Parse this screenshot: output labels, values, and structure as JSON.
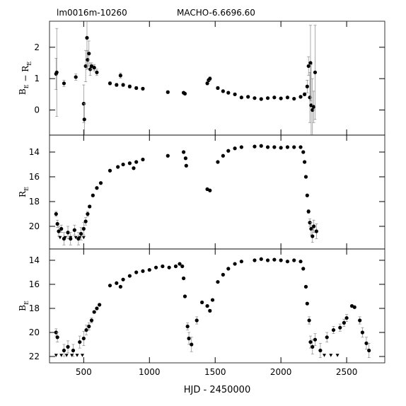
{
  "chart_data": [
    {
      "type": "scatter",
      "subtitle": "lm0016m-10260",
      "title": "MACHO-6.6696.60",
      "ylabel": [
        {
          "text": "B",
          "sub": "E"
        },
        {
          "text": " − R",
          "sub": "E"
        }
      ],
      "xlim": [
        240,
        2790
      ],
      "ylim": [
        -0.8,
        2.83
      ],
      "yticks": [
        0,
        1,
        2
      ],
      "series": [
        {
          "name": "B-R",
          "color": "#000000",
          "x": [
            290,
            295,
            350,
            440,
            500,
            505,
            515,
            525,
            530,
            540,
            550,
            560,
            580,
            600,
            700,
            750,
            780,
            800,
            850,
            900,
            950,
            1140,
            1260,
            1270,
            1440,
            1450,
            1460,
            1520,
            1560,
            1600,
            1650,
            1700,
            1750,
            1800,
            1850,
            1900,
            1950,
            2000,
            2050,
            2100,
            2150,
            2180,
            2200,
            2210,
            2220,
            2225,
            2230,
            2240,
            2250,
            2260
          ],
          "values": [
            1.15,
            1.2,
            0.85,
            1.05,
            0.2,
            -0.3,
            1.4,
            2.3,
            1.6,
            1.8,
            1.3,
            1.4,
            1.35,
            1.2,
            0.85,
            0.8,
            1.1,
            0.8,
            0.75,
            0.7,
            0.68,
            0.57,
            0.55,
            0.52,
            0.85,
            0.95,
            1.0,
            0.7,
            0.6,
            0.55,
            0.5,
            0.4,
            0.42,
            0.38,
            0.35,
            0.38,
            0.4,
            0.37,
            0.4,
            0.36,
            0.42,
            0.5,
            0.75,
            1.4,
            0.4,
            1.5,
            0.15,
            0.0,
            0.1,
            1.2
          ],
          "errors": [
            0.5,
            1.4,
            0.1,
            0.1,
            0.6,
            0.5,
            0.5,
            1.0,
            0.3,
            0.4,
            0.2,
            0.1,
            0.1,
            0.1,
            0.05,
            0.05,
            0.08,
            0.05,
            0.05,
            0.05,
            0.04,
            0.04,
            0.04,
            0.04,
            0.05,
            0.05,
            0.06,
            0.05,
            0.04,
            0.04,
            0.04,
            0.03,
            0.03,
            0.03,
            0.03,
            0.03,
            0.03,
            0.03,
            0.03,
            0.03,
            0.04,
            0.05,
            0.2,
            0.3,
            0.8,
            1.2,
            1.3,
            1.0,
            0.5,
            1.5
          ]
        }
      ]
    },
    {
      "type": "scatter",
      "ylabel": [
        {
          "text": "R",
          "sub": "E"
        }
      ],
      "xlim": [
        240,
        2790
      ],
      "ylim": [
        21.83,
        12.63
      ],
      "yticks": [
        14,
        16,
        18,
        20
      ],
      "series": [
        {
          "name": "R",
          "color": "#000000",
          "x": [
            290,
            300,
            310,
            330,
            350,
            380,
            400,
            430,
            460,
            480,
            500,
            515,
            530,
            545,
            570,
            600,
            630,
            700,
            760,
            800,
            850,
            880,
            900,
            950,
            1140,
            1260,
            1275,
            1280,
            1440,
            1460,
            1520,
            1560,
            1600,
            1650,
            1700,
            1800,
            1850,
            1900,
            1950,
            2000,
            2050,
            2100,
            2150,
            2170,
            2180,
            2190,
            2200,
            2210,
            2220,
            2230,
            2240,
            2250,
            2270
          ],
          "values": [
            19.0,
            19.8,
            20.4,
            20.2,
            21.0,
            20.5,
            21.0,
            20.3,
            21.0,
            20.6,
            20.2,
            19.6,
            19.0,
            18.4,
            17.5,
            16.9,
            16.5,
            15.5,
            15.2,
            15.0,
            14.9,
            15.3,
            14.8,
            14.6,
            14.3,
            14.0,
            14.5,
            15.1,
            17.0,
            17.1,
            14.8,
            14.3,
            13.9,
            13.7,
            13.6,
            13.55,
            13.5,
            13.6,
            13.6,
            13.65,
            13.6,
            13.6,
            13.6,
            14.0,
            14.8,
            16.0,
            17.5,
            18.8,
            19.7,
            20.2,
            20.8,
            20.0,
            20.4
          ],
          "errors": [
            0.2,
            0.3,
            0.4,
            0.3,
            0.5,
            0.5,
            0.5,
            0.4,
            0.5,
            0.5,
            0.5,
            0.3,
            0.2,
            0.1,
            0.1,
            0.08,
            0.05,
            0.04,
            0.04,
            0.04,
            0.04,
            0.04,
            0.03,
            0.03,
            0.03,
            0.03,
            0.03,
            0.03,
            0.04,
            0.04,
            0.03,
            0.03,
            0.03,
            0.02,
            0.02,
            0.02,
            0.02,
            0.02,
            0.02,
            0.02,
            0.02,
            0.02,
            0.02,
            0.02,
            0.03,
            0.04,
            0.08,
            0.15,
            0.3,
            0.5,
            0.5,
            0.5,
            0.6
          ]
        }
      ],
      "limits": {
        "x": [
          320,
          360,
          400,
          440,
          470,
          500
        ],
        "values": [
          20.9,
          20.9,
          20.9,
          20.9,
          20.9,
          20.9
        ]
      }
    },
    {
      "type": "scatter",
      "ylabel": [
        {
          "text": "B",
          "sub": "E"
        }
      ],
      "xlabel": "HJD - 2450000",
      "xlim": [
        240,
        2790
      ],
      "ylim": [
        22.53,
        13.06
      ],
      "yticks": [
        14,
        16,
        18,
        20,
        22
      ],
      "xticks": [
        500,
        1000,
        1500,
        2000,
        2500
      ],
      "series": [
        {
          "name": "B",
          "color": "#000000",
          "x": [
            290,
            300,
            350,
            380,
            420,
            470,
            500,
            520,
            540,
            560,
            580,
            600,
            620,
            700,
            750,
            780,
            800,
            850,
            900,
            950,
            1000,
            1050,
            1100,
            1150,
            1200,
            1230,
            1250,
            1260,
            1270,
            1290,
            1300,
            1320,
            1360,
            1400,
            1440,
            1460,
            1480,
            1520,
            1560,
            1600,
            1650,
            1700,
            1800,
            1850,
            1900,
            1950,
            2000,
            2050,
            2100,
            2150,
            2170,
            2190,
            2200,
            2215,
            2225,
            2240,
            2260,
            2300,
            2350,
            2400,
            2450,
            2480,
            2500,
            2540,
            2560,
            2600,
            2620,
            2650,
            2670
          ],
          "values": [
            20.0,
            20.4,
            21.5,
            21.2,
            21.5,
            20.8,
            20.5,
            19.8,
            19.5,
            19.0,
            18.3,
            18.0,
            17.7,
            16.1,
            15.9,
            16.2,
            15.6,
            15.3,
            15.0,
            14.9,
            14.8,
            14.6,
            14.5,
            14.6,
            14.5,
            14.3,
            14.5,
            15.5,
            17.0,
            19.5,
            20.5,
            21.0,
            19.0,
            17.5,
            17.8,
            18.2,
            17.3,
            15.8,
            15.2,
            14.7,
            14.3,
            14.1,
            14.0,
            13.9,
            14.0,
            13.95,
            14.0,
            14.1,
            14.0,
            14.1,
            14.7,
            16.2,
            17.6,
            19.0,
            20.8,
            21.2,
            20.6,
            21.5,
            20.4,
            19.8,
            19.6,
            19.2,
            18.8,
            17.8,
            17.9,
            19.0,
            20.0,
            20.9,
            21.5
          ],
          "errors": [
            0.3,
            0.4,
            0.5,
            0.5,
            0.5,
            0.5,
            0.6,
            0.4,
            0.3,
            0.2,
            0.1,
            0.1,
            0.08,
            0.05,
            0.05,
            0.05,
            0.04,
            0.04,
            0.04,
            0.04,
            0.04,
            0.03,
            0.03,
            0.03,
            0.03,
            0.03,
            0.03,
            0.05,
            0.1,
            0.3,
            0.5,
            0.6,
            0.3,
            0.1,
            0.1,
            0.1,
            0.08,
            0.05,
            0.04,
            0.03,
            0.03,
            0.02,
            0.02,
            0.02,
            0.02,
            0.02,
            0.02,
            0.02,
            0.02,
            0.02,
            0.03,
            0.05,
            0.1,
            0.3,
            0.5,
            0.6,
            0.5,
            0.6,
            0.4,
            0.3,
            0.3,
            0.3,
            0.3,
            0.1,
            0.1,
            0.3,
            0.4,
            0.5,
            0.6
          ]
        }
      ],
      "limits": {
        "x": [
          290,
          330,
          370,
          410,
          450,
          490,
          2330,
          2380,
          2430
        ],
        "values": [
          21.9,
          21.9,
          21.9,
          21.9,
          21.9,
          21.9,
          21.9,
          21.9,
          21.9
        ]
      }
    }
  ]
}
